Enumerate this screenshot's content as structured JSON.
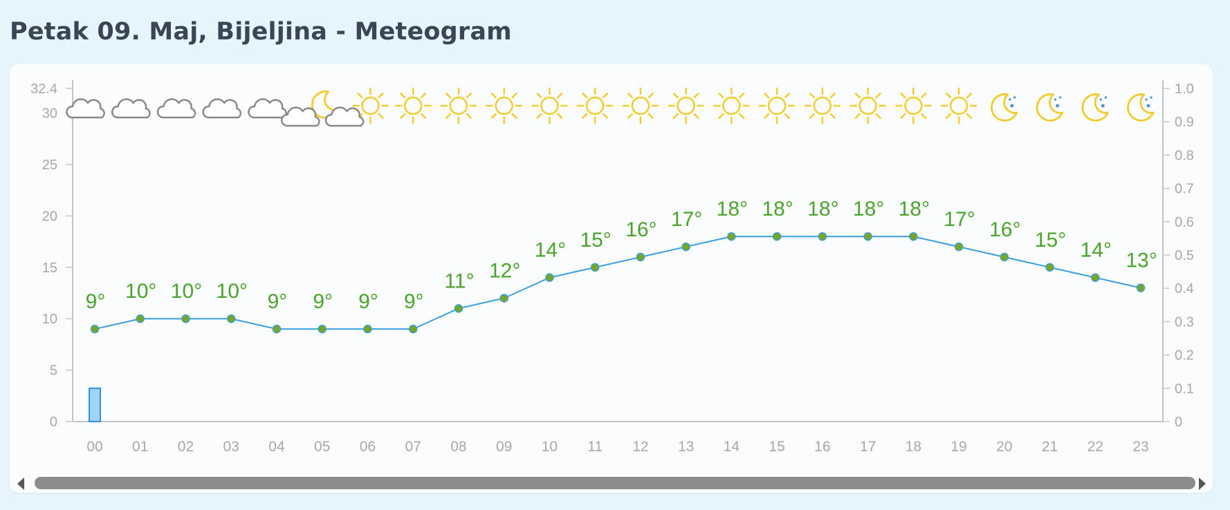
{
  "page": {
    "title": "Petak 09. Maj, Bijeljina - Meteogram"
  },
  "colors": {
    "temp_line": "#3a9ee0",
    "temp_marker": "#7aa61d",
    "temp_label": "#4aa32a",
    "precip_bar": "#9fd3f7",
    "axis_text": "#a7a7a7",
    "sun": "#f2cc2a",
    "cloud": "#888888"
  },
  "chart_data": {
    "type": "line",
    "title": "",
    "x": [
      "00",
      "01",
      "02",
      "03",
      "04",
      "05",
      "06",
      "07",
      "08",
      "09",
      "10",
      "11",
      "12",
      "13",
      "14",
      "15",
      "16",
      "17",
      "18",
      "19",
      "20",
      "21",
      "22",
      "23"
    ],
    "series": [
      {
        "values": [
          9,
          10,
          10,
          10,
          9,
          9,
          9,
          9,
          11,
          12,
          14,
          15,
          16,
          17,
          18,
          18,
          18,
          18,
          18,
          17,
          16,
          15,
          14,
          13
        ]
      }
    ],
    "temp_labels": [
      "9°",
      "10°",
      "10°",
      "10°",
      "9°",
      "9°",
      "9°",
      "9°",
      "11°",
      "12°",
      "14°",
      "15°",
      "16°",
      "17°",
      "18°",
      "18°",
      "18°",
      "18°",
      "18°",
      "17°",
      "16°",
      "15°",
      "14°",
      "13°"
    ],
    "precipitation": [
      0.1,
      0,
      0,
      0,
      0,
      0,
      0,
      0,
      0,
      0,
      0,
      0,
      0,
      0,
      0,
      0,
      0,
      0,
      0,
      0,
      0,
      0,
      0,
      0
    ],
    "weather_icons": [
      "cloud-icon",
      "cloud-icon",
      "cloud-icon",
      "cloud-icon",
      "cloud-icon",
      "moon-cloud-icon",
      "sun-cloud-icon",
      "sun-icon",
      "sun-icon",
      "sun-icon",
      "sun-icon",
      "sun-icon",
      "sun-icon",
      "sun-icon",
      "sun-icon",
      "sun-icon",
      "sun-icon",
      "sun-icon",
      "sun-icon",
      "sun-icon",
      "moon-icon",
      "moon-icon",
      "moon-icon",
      "moon-icon"
    ],
    "y_left": {
      "ticks": [
        "0",
        "5",
        "10",
        "15",
        "20",
        "25",
        "30"
      ],
      "top_label": "32.4",
      "ylim": [
        0,
        32.4
      ]
    },
    "y_right": {
      "ticks": [
        "0",
        "0.1",
        "0.2",
        "0.3",
        "0.4",
        "0.5",
        "0.6",
        "0.7",
        "0.8",
        "0.9",
        "1.0"
      ],
      "ylim": [
        0,
        1.0
      ]
    },
    "grid": false
  }
}
